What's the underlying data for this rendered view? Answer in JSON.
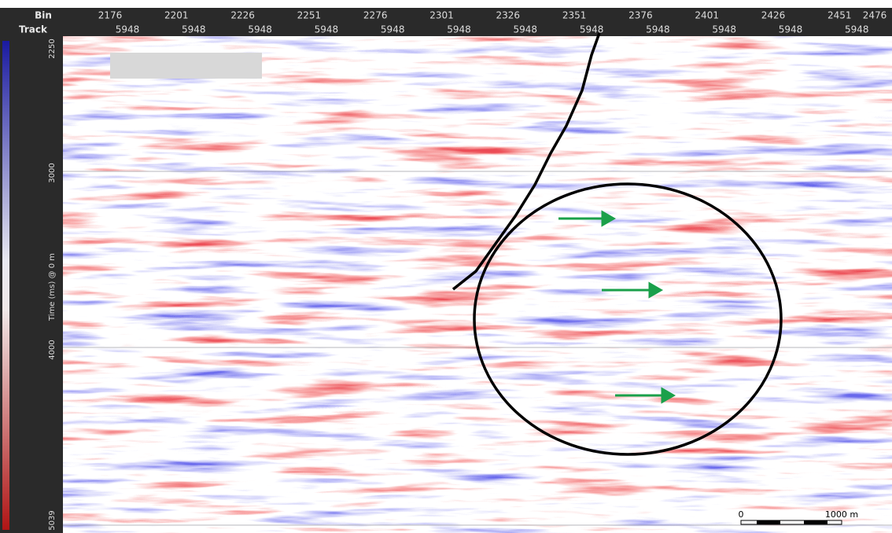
{
  "header": {
    "bin_label": "Bin",
    "track_label": "Track",
    "bins": [
      2176,
      2201,
      2226,
      2251,
      2276,
      2301,
      2326,
      2351,
      2376,
      2401,
      2426,
      2451,
      2476
    ],
    "tracks": [
      5948,
      5948,
      5948,
      5948,
      5948,
      5948,
      5948,
      5948,
      5948,
      5948,
      5948,
      5948
    ]
  },
  "y_axis": {
    "title": "Time (ms) @ 0 m",
    "labels": [
      2250,
      3000,
      4000,
      5039
    ]
  },
  "scale_bar": {
    "start": "0",
    "end": "1000 m"
  }
}
